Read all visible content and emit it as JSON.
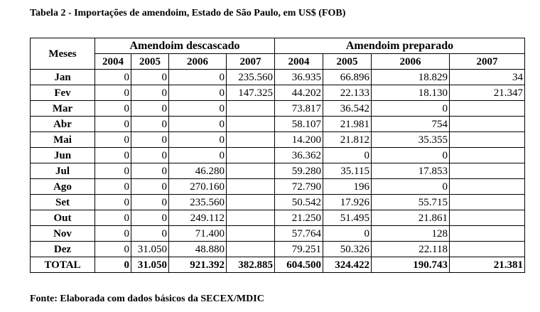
{
  "title": "Tabela 2 - Importações de amendoim, Estado de São Paulo, em US$ (FOB)",
  "table": {
    "month_header": "Meses",
    "groups": [
      "Amendoim descascado",
      "Amendoim preparado"
    ],
    "years": [
      "2004",
      "2005",
      "2006",
      "2007",
      "2004",
      "2005",
      "2006",
      "2007"
    ],
    "rows": [
      [
        "Jan",
        "0",
        "0",
        "0",
        "235.560",
        "36.935",
        "66.896",
        "18.829",
        "34"
      ],
      [
        "Fev",
        "0",
        "0",
        "0",
        "147.325",
        "44.202",
        "22.133",
        "18.130",
        "21.347"
      ],
      [
        "Mar",
        "0",
        "0",
        "0",
        null,
        "73.817",
        "36.542",
        "0",
        null
      ],
      [
        "Abr",
        "0",
        "0",
        "0",
        null,
        "58.107",
        "21.981",
        "754",
        null
      ],
      [
        "Mai",
        "0",
        "0",
        "0",
        null,
        "14.200",
        "21.812",
        "35.355",
        null
      ],
      [
        "Jun",
        "0",
        "0",
        "0",
        null,
        "36.362",
        "0",
        "0",
        null
      ],
      [
        "Jul",
        "0",
        "0",
        "46.280",
        null,
        "59.280",
        "35.115",
        "17.853",
        null
      ],
      [
        "Ago",
        "0",
        "0",
        "270.160",
        null,
        "72.790",
        "196",
        "0",
        null
      ],
      [
        "Set",
        "0",
        "0",
        "235.560",
        null,
        "50.542",
        "17.926",
        "55.715",
        null
      ],
      [
        "Out",
        "0",
        "0",
        "249.112",
        null,
        "21.250",
        "51.495",
        "21.861",
        null
      ],
      [
        "Nov",
        "0",
        "0",
        "71.400",
        null,
        "57.764",
        "0",
        "128",
        null
      ],
      [
        "Dez",
        "0",
        "31.050",
        "48.880",
        null,
        "79.251",
        "50.326",
        "22.118",
        null
      ]
    ],
    "total": [
      "TOTAL",
      "0",
      "31.050",
      "921.392",
      "382.885",
      "604.500",
      "324.422",
      "190.743",
      "21.381"
    ]
  },
  "source": "Fonte: Elaborada com dados básicos da SECEX/MDIC"
}
